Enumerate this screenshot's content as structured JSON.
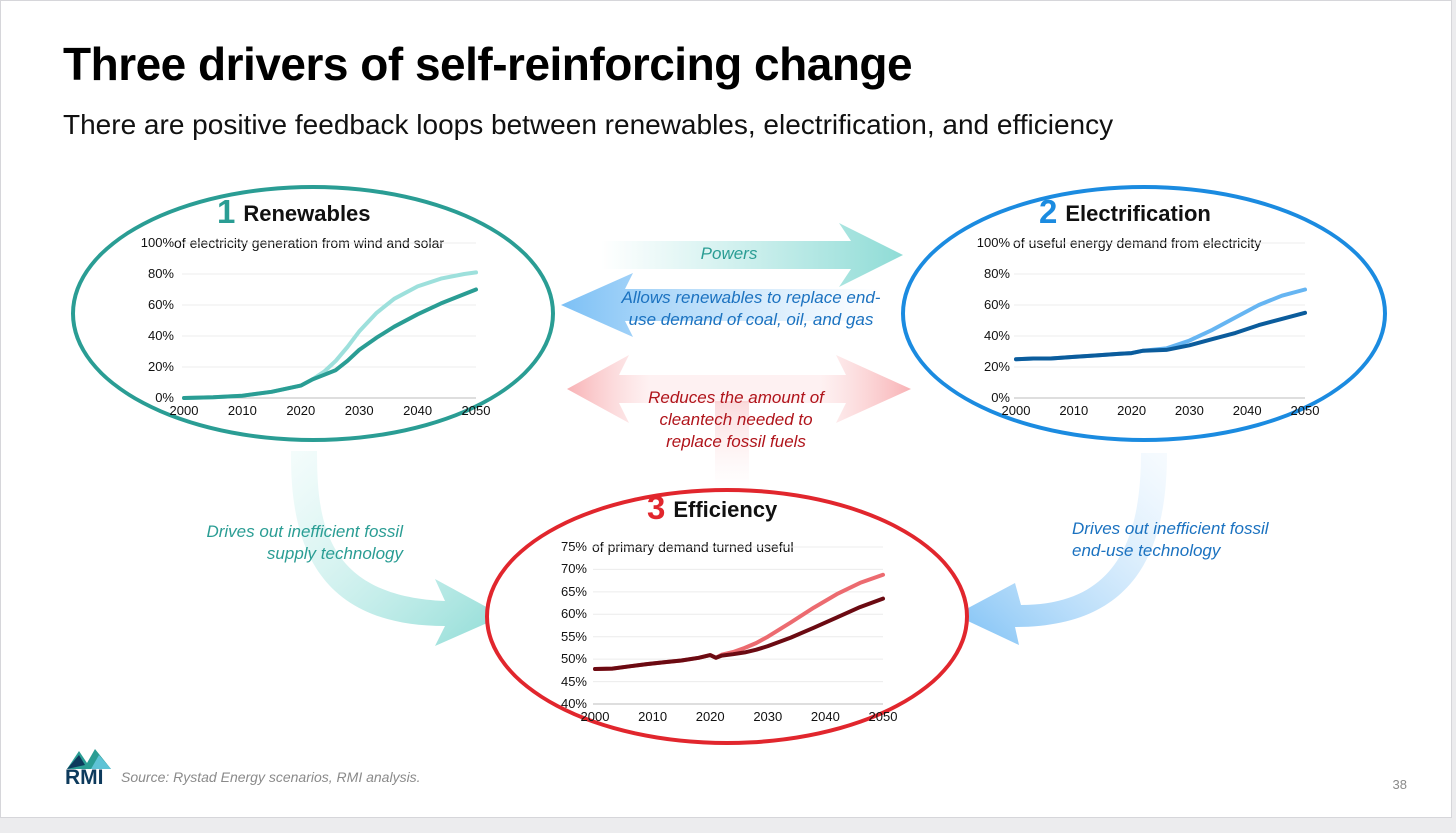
{
  "title": "Three drivers of self-reinforcing change",
  "subtitle": "There are positive feedback loops between renewables, electrification, and efficiency",
  "arrows": {
    "powers": "Powers",
    "allows": "Allows renewables to replace end-use demand of coal, oil, and gas",
    "allows_line1": "Allows renewables to replace end-",
    "allows_line2": "use demand of coal, oil, and gas",
    "reduces_line1": "Reduces the amount of",
    "reduces_line2": "cleantech needed to",
    "reduces_line3": "replace fossil fuels",
    "left_line1": "Drives out inefficient fossil",
    "left_line2": "supply technology",
    "right_line1": "Drives out inefficient fossil",
    "right_line2": "end-use technology"
  },
  "colors": {
    "teal": "#2a9d94",
    "teal_light": "#9de0dc",
    "blue": "#1b8be0",
    "blue_dark": "#0b5c9c",
    "blue_light": "#66b5f2",
    "red": "#e1262d",
    "red_dark": "#6b0a12",
    "red_light": "#ec6b70"
  },
  "source": "Source: Rystad Energy scenarios, RMI analysis.",
  "page_number": "38",
  "logo_text": "RMI",
  "chart_data": [
    {
      "type": "line",
      "number": "1",
      "heading": "Renewables",
      "description": "of electricity generation from wind and solar",
      "y_ticks": [
        "100%",
        "80%",
        "60%",
        "40%",
        "20%",
        "0%"
      ],
      "x_ticks": [
        "2000",
        "2010",
        "2020",
        "2030",
        "2040",
        "2050"
      ],
      "ylim": [
        0,
        100
      ],
      "xlim": [
        2000,
        2050
      ],
      "series": [
        {
          "color": "#9de0dc",
          "x": [
            2000,
            2005,
            2010,
            2015,
            2020,
            2022,
            2024,
            2026,
            2028,
            2030,
            2033,
            2036,
            2040,
            2044,
            2048,
            2050
          ],
          "y": [
            0,
            0.5,
            1.5,
            4,
            8,
            12,
            17,
            24,
            33,
            43,
            55,
            64,
            72,
            77,
            80,
            81
          ]
        },
        {
          "color": "#2a9d94",
          "x": [
            2000,
            2005,
            2010,
            2015,
            2020,
            2022,
            2024,
            2026,
            2028,
            2030,
            2033,
            2036,
            2040,
            2044,
            2048,
            2050
          ],
          "y": [
            0,
            0.5,
            1.5,
            4,
            8,
            12,
            15,
            18,
            24,
            31,
            39,
            46,
            54,
            61,
            67,
            70
          ]
        }
      ]
    },
    {
      "type": "line",
      "number": "2",
      "heading": "Electrification",
      "description": "of useful energy demand from electricity",
      "y_ticks": [
        "100%",
        "80%",
        "60%",
        "40%",
        "20%",
        "0%"
      ],
      "x_ticks": [
        "2000",
        "2010",
        "2020",
        "2030",
        "2040",
        "2050"
      ],
      "ylim": [
        0,
        100
      ],
      "xlim": [
        2000,
        2050
      ],
      "series": [
        {
          "color": "#66b5f2",
          "x": [
            2000,
            2003,
            2006,
            2010,
            2014,
            2018,
            2020,
            2022,
            2026,
            2030,
            2034,
            2038,
            2042,
            2046,
            2050
          ],
          "y": [
            25,
            25.5,
            25.5,
            26.5,
            27.5,
            28.5,
            29,
            30.5,
            32,
            37,
            44,
            52,
            60,
            66,
            70
          ]
        },
        {
          "color": "#0b5c9c",
          "x": [
            2000,
            2003,
            2006,
            2010,
            2014,
            2018,
            2020,
            2022,
            2026,
            2030,
            2034,
            2038,
            2042,
            2046,
            2050
          ],
          "y": [
            25,
            25.5,
            25.5,
            26.5,
            27.5,
            28.5,
            29,
            30.5,
            31,
            34,
            38,
            42,
            47,
            51,
            55
          ]
        }
      ]
    },
    {
      "type": "line",
      "number": "3",
      "heading": "Efficiency",
      "description": "of primary demand turned useful",
      "y_ticks": [
        "75%",
        "70%",
        "65%",
        "60%",
        "55%",
        "50%",
        "45%",
        "40%"
      ],
      "x_ticks": [
        "2000",
        "2010",
        "2020",
        "2030",
        "2040",
        "2050"
      ],
      "ylim": [
        40,
        75
      ],
      "xlim": [
        2000,
        2050
      ],
      "series": [
        {
          "color": "#ec6b70",
          "x": [
            2000,
            2003,
            2006,
            2009,
            2012,
            2015,
            2018,
            2020,
            2021,
            2022,
            2024,
            2026,
            2028,
            2030,
            2034,
            2038,
            2042,
            2046,
            2050
          ],
          "y": [
            47.8,
            47.9,
            48.4,
            48.9,
            49.3,
            49.7,
            50.3,
            50.9,
            50.3,
            51,
            51.6,
            52.5,
            53.6,
            55,
            58.2,
            61.5,
            64.5,
            67,
            68.8
          ]
        },
        {
          "color": "#6b0a12",
          "x": [
            2000,
            2003,
            2006,
            2009,
            2012,
            2015,
            2018,
            2020,
            2021,
            2022,
            2024,
            2026,
            2028,
            2030,
            2034,
            2038,
            2042,
            2046,
            2050
          ],
          "y": [
            47.8,
            47.9,
            48.4,
            48.9,
            49.3,
            49.7,
            50.3,
            50.9,
            50.3,
            50.8,
            51.1,
            51.5,
            52.1,
            52.9,
            54.8,
            57,
            59.3,
            61.6,
            63.5
          ]
        }
      ]
    }
  ]
}
